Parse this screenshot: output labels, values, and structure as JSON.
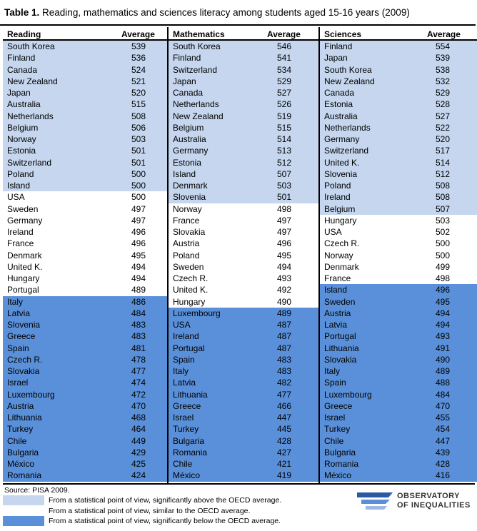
{
  "title": {
    "prefix": "Table 1.",
    "text": " Reading, mathematics and sciences literacy among students aged 15-16 years (2009)"
  },
  "columns": [
    {
      "header": "Reading",
      "avg_header": "Average",
      "rows": [
        {
          "country": "South Korea",
          "value": "539",
          "cat": "above"
        },
        {
          "country": "Finland",
          "value": "536",
          "cat": "above"
        },
        {
          "country": "Canada",
          "value": "524",
          "cat": "above"
        },
        {
          "country": "New Zealand",
          "value": "521",
          "cat": "above"
        },
        {
          "country": "Japan",
          "value": "520",
          "cat": "above"
        },
        {
          "country": "Australia",
          "value": "515",
          "cat": "above"
        },
        {
          "country": "Netherlands",
          "value": "508",
          "cat": "above"
        },
        {
          "country": "Belgium",
          "value": "506",
          "cat": "above"
        },
        {
          "country": "Norway",
          "value": "503",
          "cat": "above"
        },
        {
          "country": "Estonia",
          "value": "501",
          "cat": "above"
        },
        {
          "country": "Switzerland",
          "value": "501",
          "cat": "above"
        },
        {
          "country": "Poland",
          "value": "500",
          "cat": "above"
        },
        {
          "country": "Island",
          "value": "500",
          "cat": "above"
        },
        {
          "country": "USA",
          "value": "500",
          "cat": "similar"
        },
        {
          "country": "Sweden",
          "value": "497",
          "cat": "similar"
        },
        {
          "country": "Germany",
          "value": "497",
          "cat": "similar"
        },
        {
          "country": "Ireland",
          "value": "496",
          "cat": "similar"
        },
        {
          "country": "France",
          "value": "496",
          "cat": "similar"
        },
        {
          "country": "Denmark",
          "value": "495",
          "cat": "similar"
        },
        {
          "country": "United K.",
          "value": "494",
          "cat": "similar"
        },
        {
          "country": "Hungary",
          "value": "494",
          "cat": "similar"
        },
        {
          "country": "Portugal",
          "value": "489",
          "cat": "similar"
        },
        {
          "country": "Italy",
          "value": "486",
          "cat": "below"
        },
        {
          "country": "Latvia",
          "value": "484",
          "cat": "below"
        },
        {
          "country": "Slovenia",
          "value": "483",
          "cat": "below"
        },
        {
          "country": "Greece",
          "value": "483",
          "cat": "below"
        },
        {
          "country": "Spain",
          "value": "481",
          "cat": "below"
        },
        {
          "country": "Czech R.",
          "value": "478",
          "cat": "below"
        },
        {
          "country": "Slovakia",
          "value": "477",
          "cat": "below"
        },
        {
          "country": "Israel",
          "value": "474",
          "cat": "below"
        },
        {
          "country": "Luxembourg",
          "value": "472",
          "cat": "below"
        },
        {
          "country": "Austria",
          "value": "470",
          "cat": "below"
        },
        {
          "country": "Lithuania",
          "value": "468",
          "cat": "below"
        },
        {
          "country": "Turkey",
          "value": "464",
          "cat": "below"
        },
        {
          "country": "Chile",
          "value": "449",
          "cat": "below"
        },
        {
          "country": "Bulgaria",
          "value": "429",
          "cat": "below"
        },
        {
          "country": "México",
          "value": "425",
          "cat": "below"
        },
        {
          "country": "Romania",
          "value": "424",
          "cat": "below"
        }
      ]
    },
    {
      "header": "Mathematics",
      "avg_header": "Average",
      "rows": [
        {
          "country": "South Korea",
          "value": "546",
          "cat": "above"
        },
        {
          "country": "Finland",
          "value": "541",
          "cat": "above"
        },
        {
          "country": "Switzerland",
          "value": "534",
          "cat": "above"
        },
        {
          "country": "Japan",
          "value": "529",
          "cat": "above"
        },
        {
          "country": "Canada",
          "value": "527",
          "cat": "above"
        },
        {
          "country": "Netherlands",
          "value": "526",
          "cat": "above"
        },
        {
          "country": "New Zealand",
          "value": "519",
          "cat": "above"
        },
        {
          "country": "Belgium",
          "value": "515",
          "cat": "above"
        },
        {
          "country": "Australia",
          "value": "514",
          "cat": "above"
        },
        {
          "country": "Germany",
          "value": "513",
          "cat": "above"
        },
        {
          "country": "Estonia",
          "value": "512",
          "cat": "above"
        },
        {
          "country": "Island",
          "value": "507",
          "cat": "above"
        },
        {
          "country": "Denmark",
          "value": "503",
          "cat": "above"
        },
        {
          "country": "Slovenia",
          "value": "501",
          "cat": "above"
        },
        {
          "country": "Norway",
          "value": "498",
          "cat": "similar"
        },
        {
          "country": "France",
          "value": "497",
          "cat": "similar"
        },
        {
          "country": "Slovakia",
          "value": "497",
          "cat": "similar"
        },
        {
          "country": "Austria",
          "value": "496",
          "cat": "similar"
        },
        {
          "country": "Poland",
          "value": "495",
          "cat": "similar"
        },
        {
          "country": "Sweden",
          "value": "494",
          "cat": "similar"
        },
        {
          "country": "Czech R.",
          "value": "493",
          "cat": "similar"
        },
        {
          "country": "United K.",
          "value": "492",
          "cat": "similar"
        },
        {
          "country": "Hungary",
          "value": "490",
          "cat": "similar"
        },
        {
          "country": "Luxembourg",
          "value": "489",
          "cat": "below"
        },
        {
          "country": "USA",
          "value": "487",
          "cat": "below"
        },
        {
          "country": "Ireland",
          "value": "487",
          "cat": "below"
        },
        {
          "country": "Portugal",
          "value": "487",
          "cat": "below"
        },
        {
          "country": "Spain",
          "value": "483",
          "cat": "below"
        },
        {
          "country": "Italy",
          "value": "483",
          "cat": "below"
        },
        {
          "country": "Latvia",
          "value": "482",
          "cat": "below"
        },
        {
          "country": "Lithuania",
          "value": "477",
          "cat": "below"
        },
        {
          "country": "Greece",
          "value": "466",
          "cat": "below"
        },
        {
          "country": "Israel",
          "value": "447",
          "cat": "below"
        },
        {
          "country": "Turkey",
          "value": "445",
          "cat": "below"
        },
        {
          "country": "Bulgaria",
          "value": "428",
          "cat": "below"
        },
        {
          "country": "Romania",
          "value": "427",
          "cat": "below"
        },
        {
          "country": "Chile",
          "value": "421",
          "cat": "below"
        },
        {
          "country": "México",
          "value": "419",
          "cat": "below"
        }
      ]
    },
    {
      "header": "Sciences",
      "avg_header": "Average",
      "rows": [
        {
          "country": "Finland",
          "value": "554",
          "cat": "above"
        },
        {
          "country": "Japan",
          "value": "539",
          "cat": "above"
        },
        {
          "country": "South Korea",
          "value": "538",
          "cat": "above"
        },
        {
          "country": "New Zealand",
          "value": "532",
          "cat": "above"
        },
        {
          "country": "Canada",
          "value": "529",
          "cat": "above"
        },
        {
          "country": "Estonia",
          "value": "528",
          "cat": "above"
        },
        {
          "country": "Australia",
          "value": "527",
          "cat": "above"
        },
        {
          "country": "Netherlands",
          "value": "522",
          "cat": "above"
        },
        {
          "country": "Germany",
          "value": "520",
          "cat": "above"
        },
        {
          "country": "Switzerland",
          "value": "517",
          "cat": "above"
        },
        {
          "country": "United K.",
          "value": "514",
          "cat": "above"
        },
        {
          "country": "Slovenia",
          "value": "512",
          "cat": "above"
        },
        {
          "country": "Poland",
          "value": "508",
          "cat": "above"
        },
        {
          "country": "Ireland",
          "value": "508",
          "cat": "above"
        },
        {
          "country": "Belgium",
          "value": "507",
          "cat": "above"
        },
        {
          "country": "Hungary",
          "value": "503",
          "cat": "similar"
        },
        {
          "country": "USA",
          "value": "502",
          "cat": "similar"
        },
        {
          "country": "Czech R.",
          "value": "500",
          "cat": "similar"
        },
        {
          "country": "Norway",
          "value": "500",
          "cat": "similar"
        },
        {
          "country": "Denmark",
          "value": "499",
          "cat": "similar"
        },
        {
          "country": "France",
          "value": "498",
          "cat": "similar"
        },
        {
          "country": "Island",
          "value": "496",
          "cat": "below"
        },
        {
          "country": "Sweden",
          "value": "495",
          "cat": "below"
        },
        {
          "country": "Austria",
          "value": "494",
          "cat": "below"
        },
        {
          "country": "Latvia",
          "value": "494",
          "cat": "below"
        },
        {
          "country": "Portugal",
          "value": "493",
          "cat": "below"
        },
        {
          "country": "Lithuania",
          "value": "491",
          "cat": "below"
        },
        {
          "country": "Slovakia",
          "value": "490",
          "cat": "below"
        },
        {
          "country": "Italy",
          "value": "489",
          "cat": "below"
        },
        {
          "country": "Spain",
          "value": "488",
          "cat": "below"
        },
        {
          "country": "Luxembourg",
          "value": "484",
          "cat": "below"
        },
        {
          "country": "Greece",
          "value": "470",
          "cat": "below"
        },
        {
          "country": "Israel",
          "value": "455",
          "cat": "below"
        },
        {
          "country": "Turkey",
          "value": "454",
          "cat": "below"
        },
        {
          "country": "Chile",
          "value": "447",
          "cat": "below"
        },
        {
          "country": "Bulgaria",
          "value": "439",
          "cat": "below"
        },
        {
          "country": "Romania",
          "value": "428",
          "cat": "below"
        },
        {
          "country": "México",
          "value": "416",
          "cat": "below"
        }
      ]
    }
  ],
  "source": "Source: PISA 2009.",
  "legend": [
    {
      "label": "From a statistical point of view, significantly above the OECD average.",
      "color": "#c5d6ee"
    },
    {
      "label": "From a statistical point of view, similar to the OECD average.",
      "color": "#ffffff"
    },
    {
      "label": "From a statistical point of view, significantly below the OECD average.",
      "color": "#5a90d9"
    }
  ],
  "logo": {
    "line1": "OBSERVATORY",
    "line2": "OF INEQUALITIES",
    "icon": "observatory-logo-icon"
  },
  "colors": {
    "above": "#c5d6ee",
    "similar": "#ffffff",
    "below": "#5a90d9"
  }
}
